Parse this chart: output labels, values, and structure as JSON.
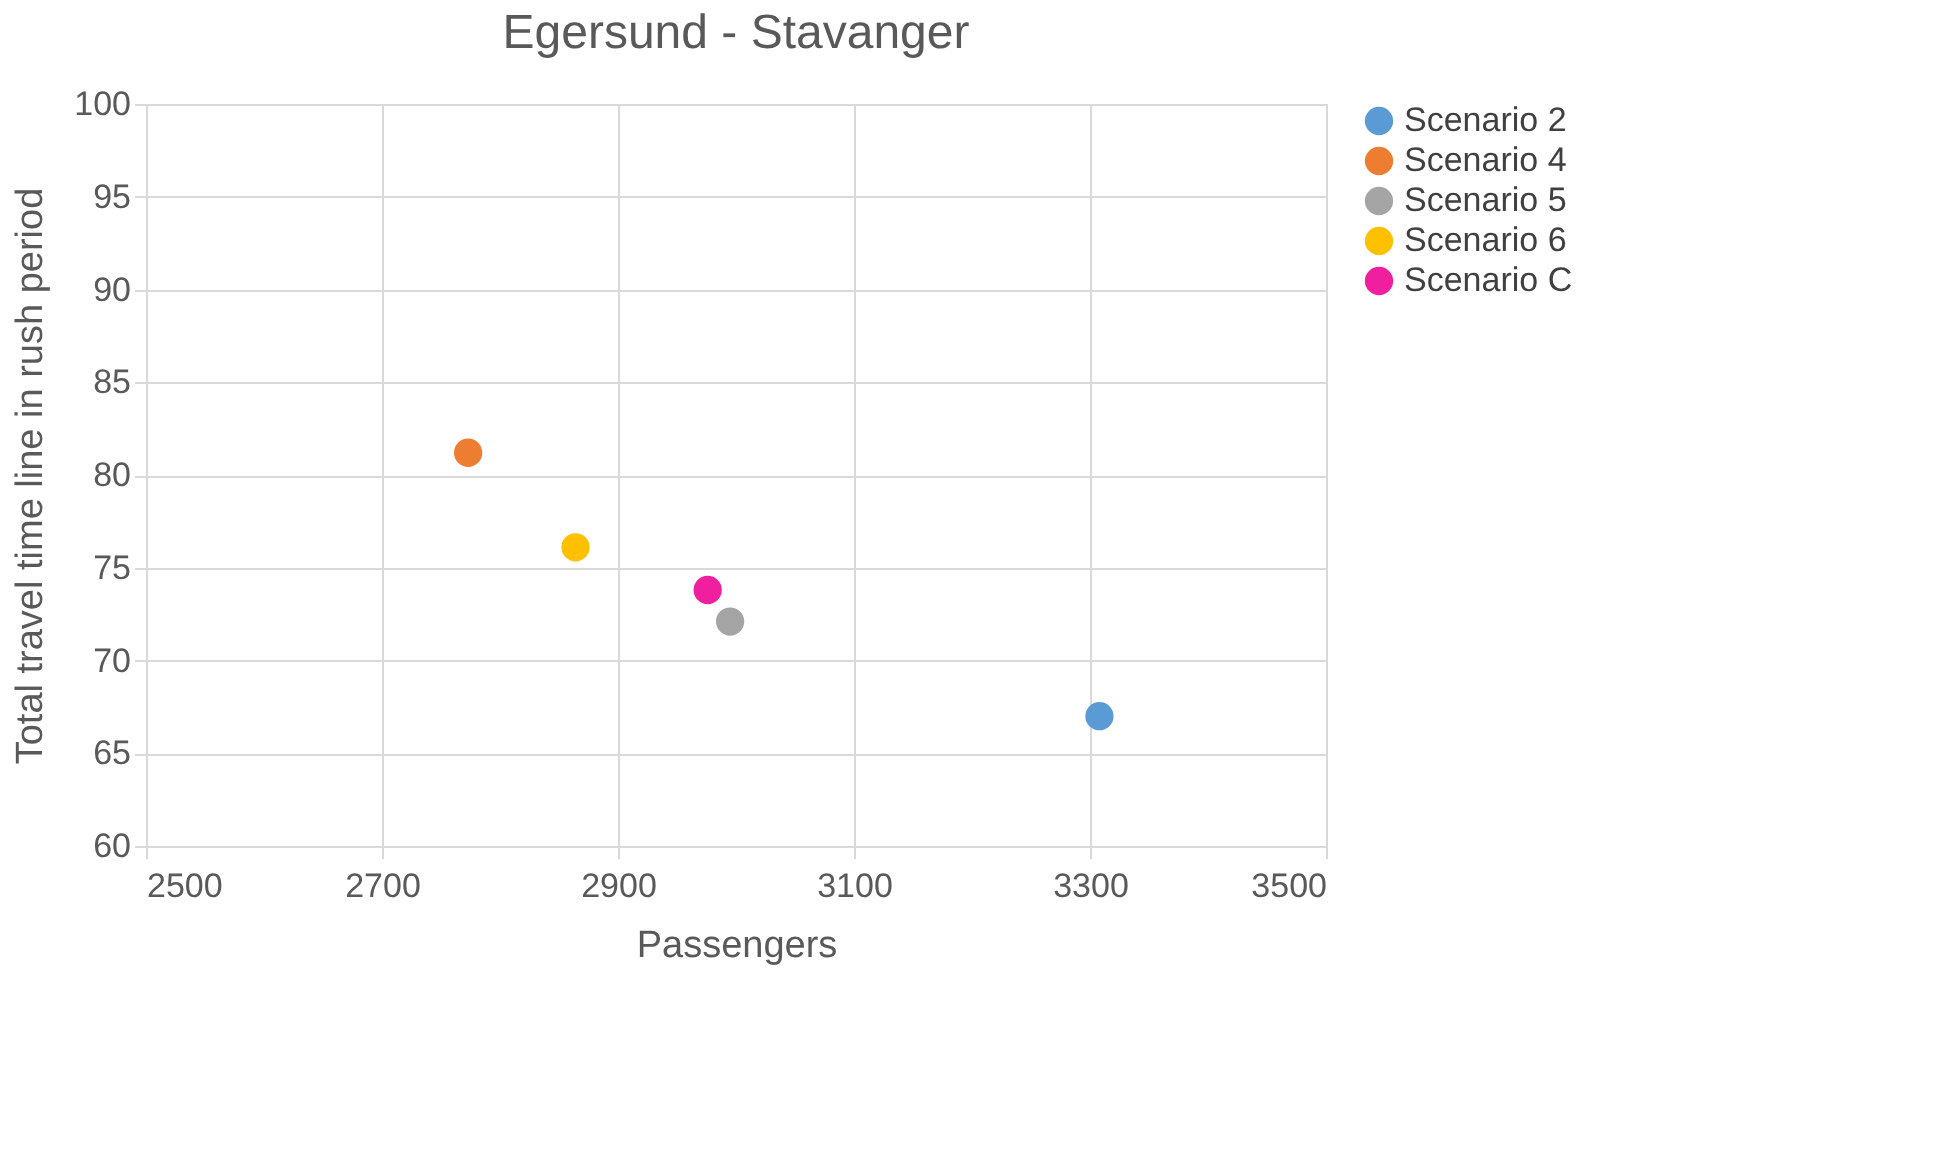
{
  "chart_data": {
    "type": "scatter",
    "title": "Egersund - Stavanger",
    "xlabel": "Passengers",
    "ylabel": "Total travel time line in rush period",
    "xlim": [
      2500,
      3500
    ],
    "xticks": [
      2500,
      2700,
      2900,
      3100,
      3300,
      3500
    ],
    "ylim": [
      60,
      100
    ],
    "yticks": [
      60,
      65,
      70,
      75,
      80,
      85,
      90,
      95,
      100
    ],
    "grid": true,
    "legend": "right",
    "marker": "circle",
    "series": [
      {
        "name": "Scenario 2",
        "color": "#5b9bd5",
        "x": [
          3308
        ],
        "values": [
          67
        ]
      },
      {
        "name": "Scenario 4",
        "color": "#ed7d31",
        "x": [
          2773
        ],
        "values": [
          81.2
        ]
      },
      {
        "name": "Scenario 5",
        "color": "#a5a5a5",
        "x": [
          2995
        ],
        "values": [
          72.1
        ]
      },
      {
        "name": "Scenario 6",
        "color": "#ffc000",
        "x": [
          2864
        ],
        "values": [
          76.1
        ]
      },
      {
        "name": "Scenario C",
        "color": "#f01fa0",
        "x": [
          2976
        ],
        "values": [
          73.8
        ]
      }
    ]
  }
}
